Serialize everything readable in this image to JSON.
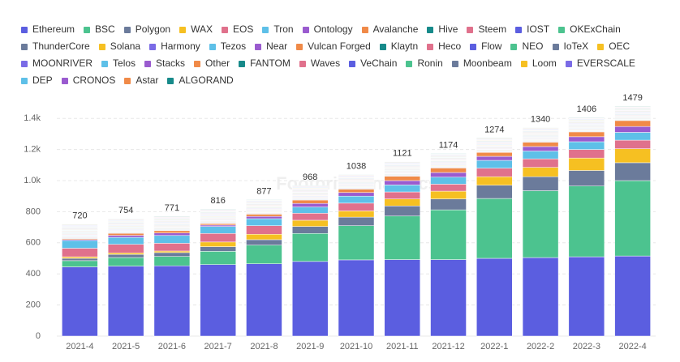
{
  "chart_data": {
    "type": "stacked_bar",
    "watermark": "Footprint Analytics",
    "categories": [
      "2021-4",
      "2021-5",
      "2021-6",
      "2021-7",
      "2021-8",
      "2021-9",
      "2021-10",
      "2021-11",
      "2021-12",
      "2022-1",
      "2022-2",
      "2022-3",
      "2022-4"
    ],
    "totals": [
      720,
      754,
      771,
      816,
      877,
      968,
      1038,
      1121,
      1174,
      1274,
      1340,
      1406,
      1479
    ],
    "ylim": [
      0,
      1500
    ],
    "yticks": [
      0,
      200,
      400,
      600,
      800,
      {
        "value": 1000,
        "label": "1.0k"
      },
      {
        "value": 1200,
        "label": "1.2k"
      },
      {
        "value": 1400,
        "label": "1.4k"
      }
    ],
    "grid": true,
    "legend": "top",
    "series": [
      {
        "name": "Ethereum",
        "color": "#5b5ee0",
        "values": [
          445,
          450,
          452,
          460,
          465,
          480,
          490,
          492,
          492,
          500,
          505,
          510,
          515
        ]
      },
      {
        "name": "BSC",
        "color": "#4cc38f",
        "values": [
          40,
          55,
          60,
          85,
          120,
          180,
          220,
          280,
          320,
          385,
          430,
          455,
          485
        ]
      },
      {
        "name": "Polygon",
        "color": "#6b7b9b",
        "values": [
          15,
          20,
          25,
          30,
          35,
          45,
          55,
          65,
          70,
          85,
          90,
          100,
          115
        ]
      },
      {
        "name": "WAX",
        "color": "#f6c022",
        "values": [
          10,
          10,
          10,
          30,
          35,
          40,
          40,
          45,
          50,
          55,
          60,
          80,
          90
        ]
      },
      {
        "name": "EOS",
        "color": "#e0718c",
        "values": [
          55,
          55,
          50,
          55,
          55,
          45,
          50,
          45,
          45,
          55,
          55,
          55,
          55
        ]
      },
      {
        "name": "Tron",
        "color": "#5ec0e8",
        "values": [
          50,
          45,
          50,
          45,
          45,
          40,
          45,
          45,
          45,
          50,
          50,
          50,
          50
        ]
      },
      {
        "name": "Ontology",
        "color": "#9a5bcf",
        "values": [
          6,
          13,
          16,
          9,
          15,
          23,
          23,
          28,
          30,
          26,
          29,
          32,
          38
        ]
      },
      {
        "name": "Avalanche",
        "color": "#f08a48",
        "values": [
          6,
          13,
          15,
          9,
          14,
          22,
          22,
          28,
          29,
          25,
          28,
          31,
          38
        ]
      },
      {
        "name": "Hive",
        "color": "#178a8a",
        "values": [
          3,
          3,
          3,
          3,
          3,
          3,
          3,
          3,
          3,
          3,
          3,
          3,
          3
        ]
      },
      {
        "name": "Steem",
        "color": "#e0718c",
        "values": [
          3,
          3,
          3,
          3,
          3,
          3,
          3,
          3,
          3,
          3,
          3,
          3,
          3
        ]
      },
      {
        "name": "IOST",
        "color": "#5b5ee0",
        "values": [
          3,
          3,
          3,
          3,
          3,
          3,
          3,
          3,
          3,
          3,
          3,
          3,
          3
        ]
      },
      {
        "name": "OKExChain",
        "color": "#4cc38f",
        "values": [
          3,
          3,
          3,
          3,
          3,
          3,
          3,
          3,
          3,
          3,
          3,
          3,
          3
        ]
      },
      {
        "name": "ThunderCore",
        "color": "#6b7b9b",
        "values": [
          3,
          3,
          3,
          3,
          3,
          3,
          3,
          3,
          3,
          3,
          3,
          3,
          3
        ]
      },
      {
        "name": "Solana",
        "color": "#f6c022",
        "values": [
          3,
          3,
          3,
          3,
          3,
          3,
          3,
          3,
          3,
          3,
          3,
          3,
          3
        ]
      },
      {
        "name": "Harmony",
        "color": "#7a6be6",
        "values": [
          3,
          3,
          3,
          3,
          3,
          3,
          3,
          3,
          3,
          3,
          3,
          3,
          3
        ]
      },
      {
        "name": "Tezos",
        "color": "#5ec0e8",
        "values": [
          3,
          3,
          3,
          3,
          3,
          3,
          3,
          3,
          3,
          3,
          3,
          3,
          3
        ]
      },
      {
        "name": "Near",
        "color": "#9a5bcf",
        "values": [
          3,
          3,
          3,
          3,
          3,
          3,
          3,
          3,
          3,
          3,
          3,
          3,
          3
        ]
      },
      {
        "name": "Vulcan Forged",
        "color": "#f08a48",
        "values": [
          3,
          3,
          3,
          3,
          3,
          3,
          3,
          3,
          3,
          3,
          3,
          3,
          3
        ]
      },
      {
        "name": "Klaytn",
        "color": "#178a8a",
        "values": [
          3,
          3,
          3,
          3,
          3,
          3,
          3,
          3,
          3,
          3,
          3,
          3,
          3
        ]
      },
      {
        "name": "Heco",
        "color": "#e0718c",
        "values": [
          3,
          3,
          3,
          3,
          3,
          3,
          3,
          3,
          3,
          3,
          3,
          3,
          3
        ]
      },
      {
        "name": "Flow",
        "color": "#5b5ee0",
        "values": [
          3,
          3,
          3,
          3,
          3,
          3,
          3,
          3,
          3,
          3,
          3,
          3,
          3
        ]
      },
      {
        "name": "NEO",
        "color": "#4cc38f",
        "values": [
          3,
          3,
          3,
          3,
          3,
          3,
          3,
          3,
          3,
          3,
          3,
          3,
          3
        ]
      },
      {
        "name": "IoTeX",
        "color": "#6b7b9b",
        "values": [
          3,
          3,
          3,
          3,
          3,
          3,
          3,
          3,
          3,
          3,
          3,
          3,
          3
        ]
      },
      {
        "name": "OEC",
        "color": "#f6c022",
        "values": [
          3,
          3,
          3,
          3,
          3,
          3,
          3,
          3,
          3,
          3,
          3,
          3,
          3
        ]
      },
      {
        "name": "MOONRIVER",
        "color": "#7a6be6",
        "values": [
          3,
          3,
          3,
          3,
          3,
          3,
          3,
          3,
          3,
          3,
          3,
          3,
          3
        ]
      },
      {
        "name": "Telos",
        "color": "#5ec0e8",
        "values": [
          3,
          3,
          3,
          3,
          3,
          3,
          3,
          3,
          3,
          3,
          3,
          3,
          3
        ]
      },
      {
        "name": "Stacks",
        "color": "#9a5bcf",
        "values": [
          3,
          3,
          3,
          3,
          3,
          3,
          3,
          3,
          3,
          3,
          3,
          3,
          3
        ]
      },
      {
        "name": "Other",
        "color": "#f08a48",
        "values": [
          3,
          3,
          3,
          3,
          3,
          3,
          3,
          3,
          3,
          3,
          3,
          3,
          3
        ]
      },
      {
        "name": "FANTOM",
        "color": "#178a8a",
        "values": [
          3,
          3,
          3,
          3,
          3,
          3,
          3,
          3,
          3,
          3,
          3,
          3,
          3
        ]
      },
      {
        "name": "Waves",
        "color": "#e0718c",
        "values": [
          3,
          3,
          3,
          3,
          3,
          3,
          3,
          3,
          3,
          3,
          3,
          3,
          3
        ]
      },
      {
        "name": "VeChain",
        "color": "#5b5ee0",
        "values": [
          3,
          3,
          3,
          3,
          3,
          3,
          3,
          3,
          3,
          3,
          3,
          3,
          3
        ]
      },
      {
        "name": "Ronin",
        "color": "#4cc38f",
        "values": [
          3,
          3,
          3,
          3,
          3,
          3,
          3,
          3,
          3,
          3,
          3,
          3,
          3
        ]
      },
      {
        "name": "Moonbeam",
        "color": "#6b7b9b",
        "values": [
          3,
          3,
          3,
          3,
          3,
          3,
          3,
          3,
          3,
          3,
          3,
          3,
          3
        ]
      },
      {
        "name": "Loom",
        "color": "#f6c022",
        "values": [
          3,
          3,
          3,
          3,
          3,
          3,
          3,
          3,
          3,
          3,
          3,
          3,
          3
        ]
      },
      {
        "name": "EVERSCALE",
        "color": "#7a6be6",
        "values": [
          3,
          3,
          3,
          3,
          3,
          3,
          3,
          3,
          3,
          3,
          3,
          3,
          3
        ]
      },
      {
        "name": "DEP",
        "color": "#5ec0e8",
        "values": [
          3,
          3,
          3,
          3,
          3,
          3,
          3,
          3,
          3,
          3,
          3,
          3,
          3
        ]
      },
      {
        "name": "CRONOS",
        "color": "#9a5bcf",
        "values": [
          3,
          3,
          3,
          3,
          3,
          3,
          3,
          3,
          3,
          3,
          3,
          3,
          3
        ]
      },
      {
        "name": "Astar",
        "color": "#f08a48",
        "values": [
          3,
          3,
          3,
          3,
          3,
          3,
          3,
          3,
          3,
          3,
          3,
          3,
          3
        ]
      },
      {
        "name": "ALGORAND",
        "color": "#178a8a",
        "values": [
          3,
          3,
          3,
          3,
          3,
          3,
          3,
          3,
          3,
          3,
          3,
          3,
          3
        ]
      }
    ]
  }
}
